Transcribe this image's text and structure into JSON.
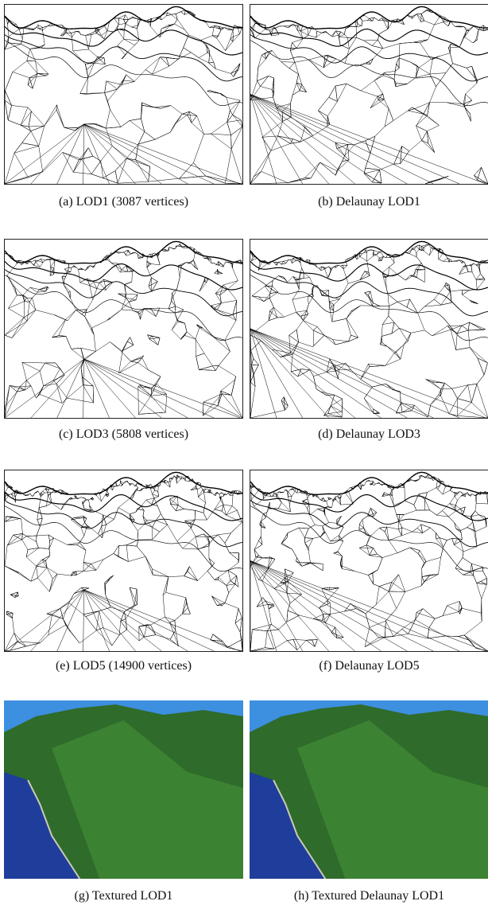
{
  "figure": {
    "panels": [
      {
        "caption": "(a) LOD1 (3087 vertices)"
      },
      {
        "caption": "(b) Delaunay LOD1"
      },
      {
        "caption": "(c) LOD3 (5808 vertices)"
      },
      {
        "caption": "(d) Delaunay LOD3"
      },
      {
        "caption": "(e) LOD5 (14900 vertices)"
      },
      {
        "caption": "(f) Delaunay LOD5"
      },
      {
        "caption": "(g) Textured LOD1"
      },
      {
        "caption": "(h) Textured Delaunay LOD1"
      }
    ]
  }
}
